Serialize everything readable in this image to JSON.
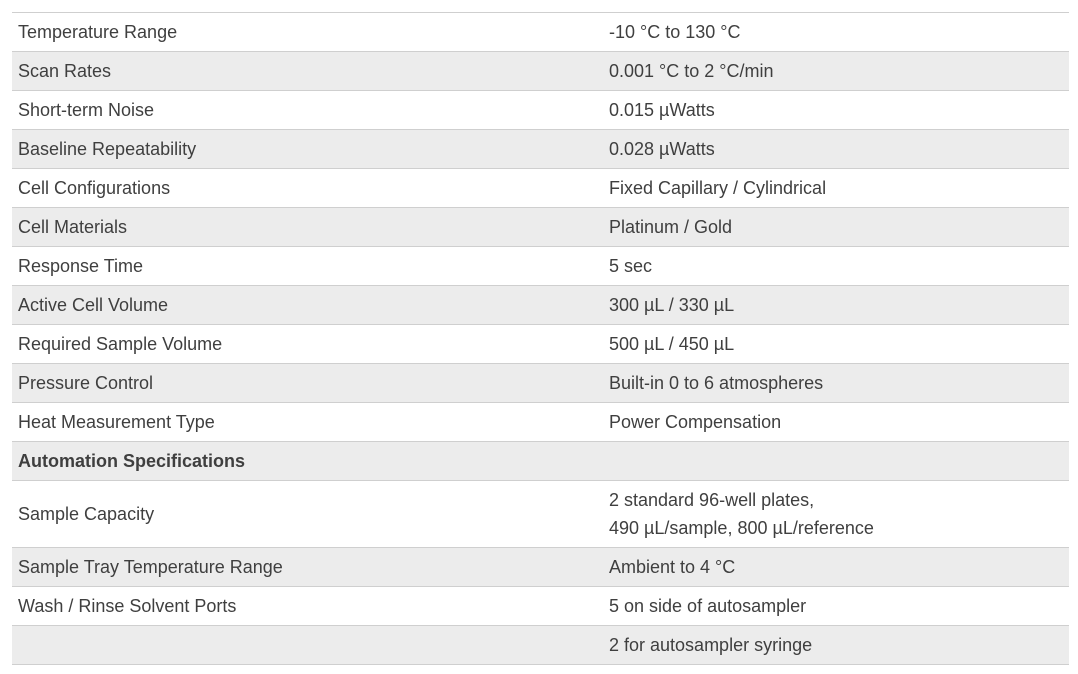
{
  "rows": [
    {
      "label": "Temperature Range",
      "value": "-10 °C to 130 °C"
    },
    {
      "label": "Scan Rates",
      "value": "0.001 °C to 2 °C/min"
    },
    {
      "label": "Short-term Noise",
      "value": "0.015 µWatts"
    },
    {
      "label": "Baseline Repeatability",
      "value": "0.028 µWatts"
    },
    {
      "label": "Cell Configurations",
      "value": "Fixed Capillary / Cylindrical"
    },
    {
      "label": "Cell Materials",
      "value": "Platinum / Gold"
    },
    {
      "label": "Response Time",
      "value": "5 sec"
    },
    {
      "label": "Active Cell Volume",
      "value": "300 µL / 330 µL"
    },
    {
      "label": "Required Sample Volume",
      "value": "500 µL / 450 µL"
    },
    {
      "label": "Pressure Control",
      "value": "Built-in 0 to 6 atmospheres"
    },
    {
      "label": "Heat Measurement Type",
      "value": "Power Compensation"
    },
    {
      "label": "Automation Specifications",
      "value": ""
    },
    {
      "label": "Sample Capacity",
      "value": "2 standard 96-well plates,\n490 µL/sample, 800 µL/reference"
    },
    {
      "label": "Sample Tray Temperature Range",
      "value": "Ambient to 4 °C"
    },
    {
      "label": "Wash / Rinse Solvent Ports",
      "value": "5 on side of autosampler"
    },
    {
      "label": "",
      "value": "2 for autosampler syringe"
    }
  ]
}
